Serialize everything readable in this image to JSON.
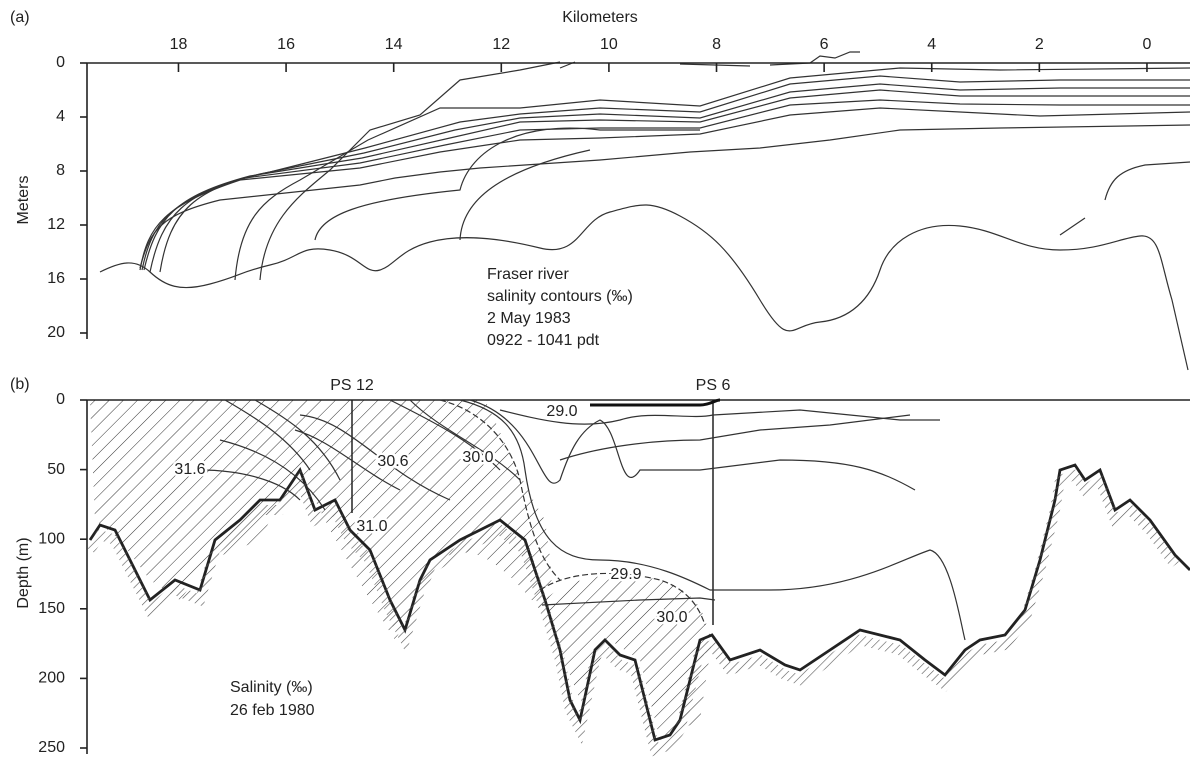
{
  "chart_data": [
    {
      "type": "contour",
      "panel_label": "(a)",
      "x_label": "Kilometers",
      "y_label": "Meters",
      "xlim": [
        19.7,
        -0.8
      ],
      "xticks": [
        18,
        16,
        14,
        12,
        10,
        8,
        6,
        4,
        2,
        0
      ],
      "ylim": [
        0,
        20
      ],
      "yticks": [
        0,
        4,
        8,
        12,
        16,
        20
      ],
      "annotation": [
        "Fraser river",
        "salinity contours (‰)",
        "2 May 1983",
        "0922 - 1041 pdt"
      ]
    },
    {
      "type": "contour",
      "panel_label": "(b)",
      "y_label": "Depth (m)",
      "ylim": [
        0,
        250
      ],
      "yticks": [
        0,
        50,
        100,
        150,
        200,
        250
      ],
      "station_labels": [
        "PS 12",
        "PS 6"
      ],
      "contour_labels": [
        "29.0",
        "31.6",
        "30.6",
        "30.0",
        "31.0",
        "29.9",
        "30.0"
      ],
      "annotation": [
        "Salinity (‰)",
        "26 feb 1980"
      ]
    }
  ]
}
